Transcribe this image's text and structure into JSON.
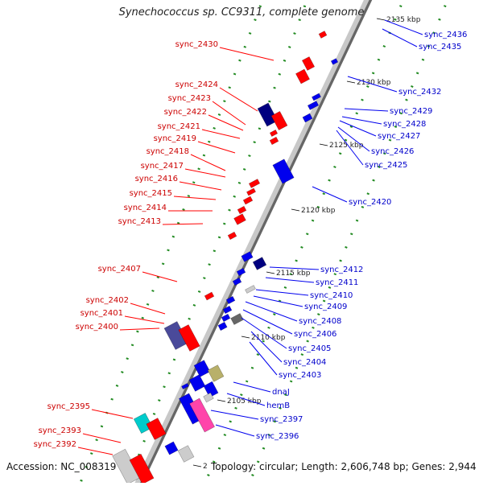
{
  "title": "Synechococcus sp. CC9311, complete genome",
  "accession": "Accession: NC_008319",
  "summary": "Topology: circular; Length: 2,606,748 bp; Genes: 2,944",
  "ticks": [
    {
      "label": "2135 kbp"
    },
    {
      "label": "2130 kbp"
    },
    {
      "label": "2125 kbp"
    },
    {
      "label": "2120 kbp"
    },
    {
      "label": "2115 kbp"
    },
    {
      "label": "2110 kbp"
    },
    {
      "label": "2105 kbp"
    },
    {
      "label": "2"
    }
  ],
  "left_labels": [
    {
      "name": "sync_2430"
    },
    {
      "name": "sync_2424"
    },
    {
      "name": "sync_2423"
    },
    {
      "name": "sync_2422"
    },
    {
      "name": "sync_2421"
    },
    {
      "name": "sync_2419"
    },
    {
      "name": "sync_2418"
    },
    {
      "name": "sync_2417"
    },
    {
      "name": "sync_2416"
    },
    {
      "name": "sync_2415"
    },
    {
      "name": "sync_2414"
    },
    {
      "name": "sync_2413"
    },
    {
      "name": "sync_2407"
    },
    {
      "name": "sync_2402"
    },
    {
      "name": "sync_2401"
    },
    {
      "name": "sync_2400"
    },
    {
      "name": "sync_2395"
    },
    {
      "name": "sync_2393"
    },
    {
      "name": "sync_2392"
    }
  ],
  "right_labels": [
    {
      "name": "sync_2436"
    },
    {
      "name": "sync_2435"
    },
    {
      "name": "sync_2432"
    },
    {
      "name": "sync_2429"
    },
    {
      "name": "sync_2428"
    },
    {
      "name": "sync_2427"
    },
    {
      "name": "sync_2426"
    },
    {
      "name": "sync_2425"
    },
    {
      "name": "sync_2420"
    },
    {
      "name": "sync_2412"
    },
    {
      "name": "sync_2411"
    },
    {
      "name": "sync_2410"
    },
    {
      "name": "sync_2409"
    },
    {
      "name": "sync_2408"
    },
    {
      "name": "sync_2406"
    },
    {
      "name": "sync_2405"
    },
    {
      "name": "sync_2404"
    },
    {
      "name": "sync_2403"
    },
    {
      "name": "dnaJ"
    },
    {
      "name": "hemB"
    },
    {
      "name": "sync_2397"
    },
    {
      "name": "sync_2396"
    }
  ],
  "colors": {
    "forward_strand": "#ff0000",
    "reverse_strand": "#0000ee",
    "backbone": "#999999",
    "tick_marks": "#228b22"
  }
}
